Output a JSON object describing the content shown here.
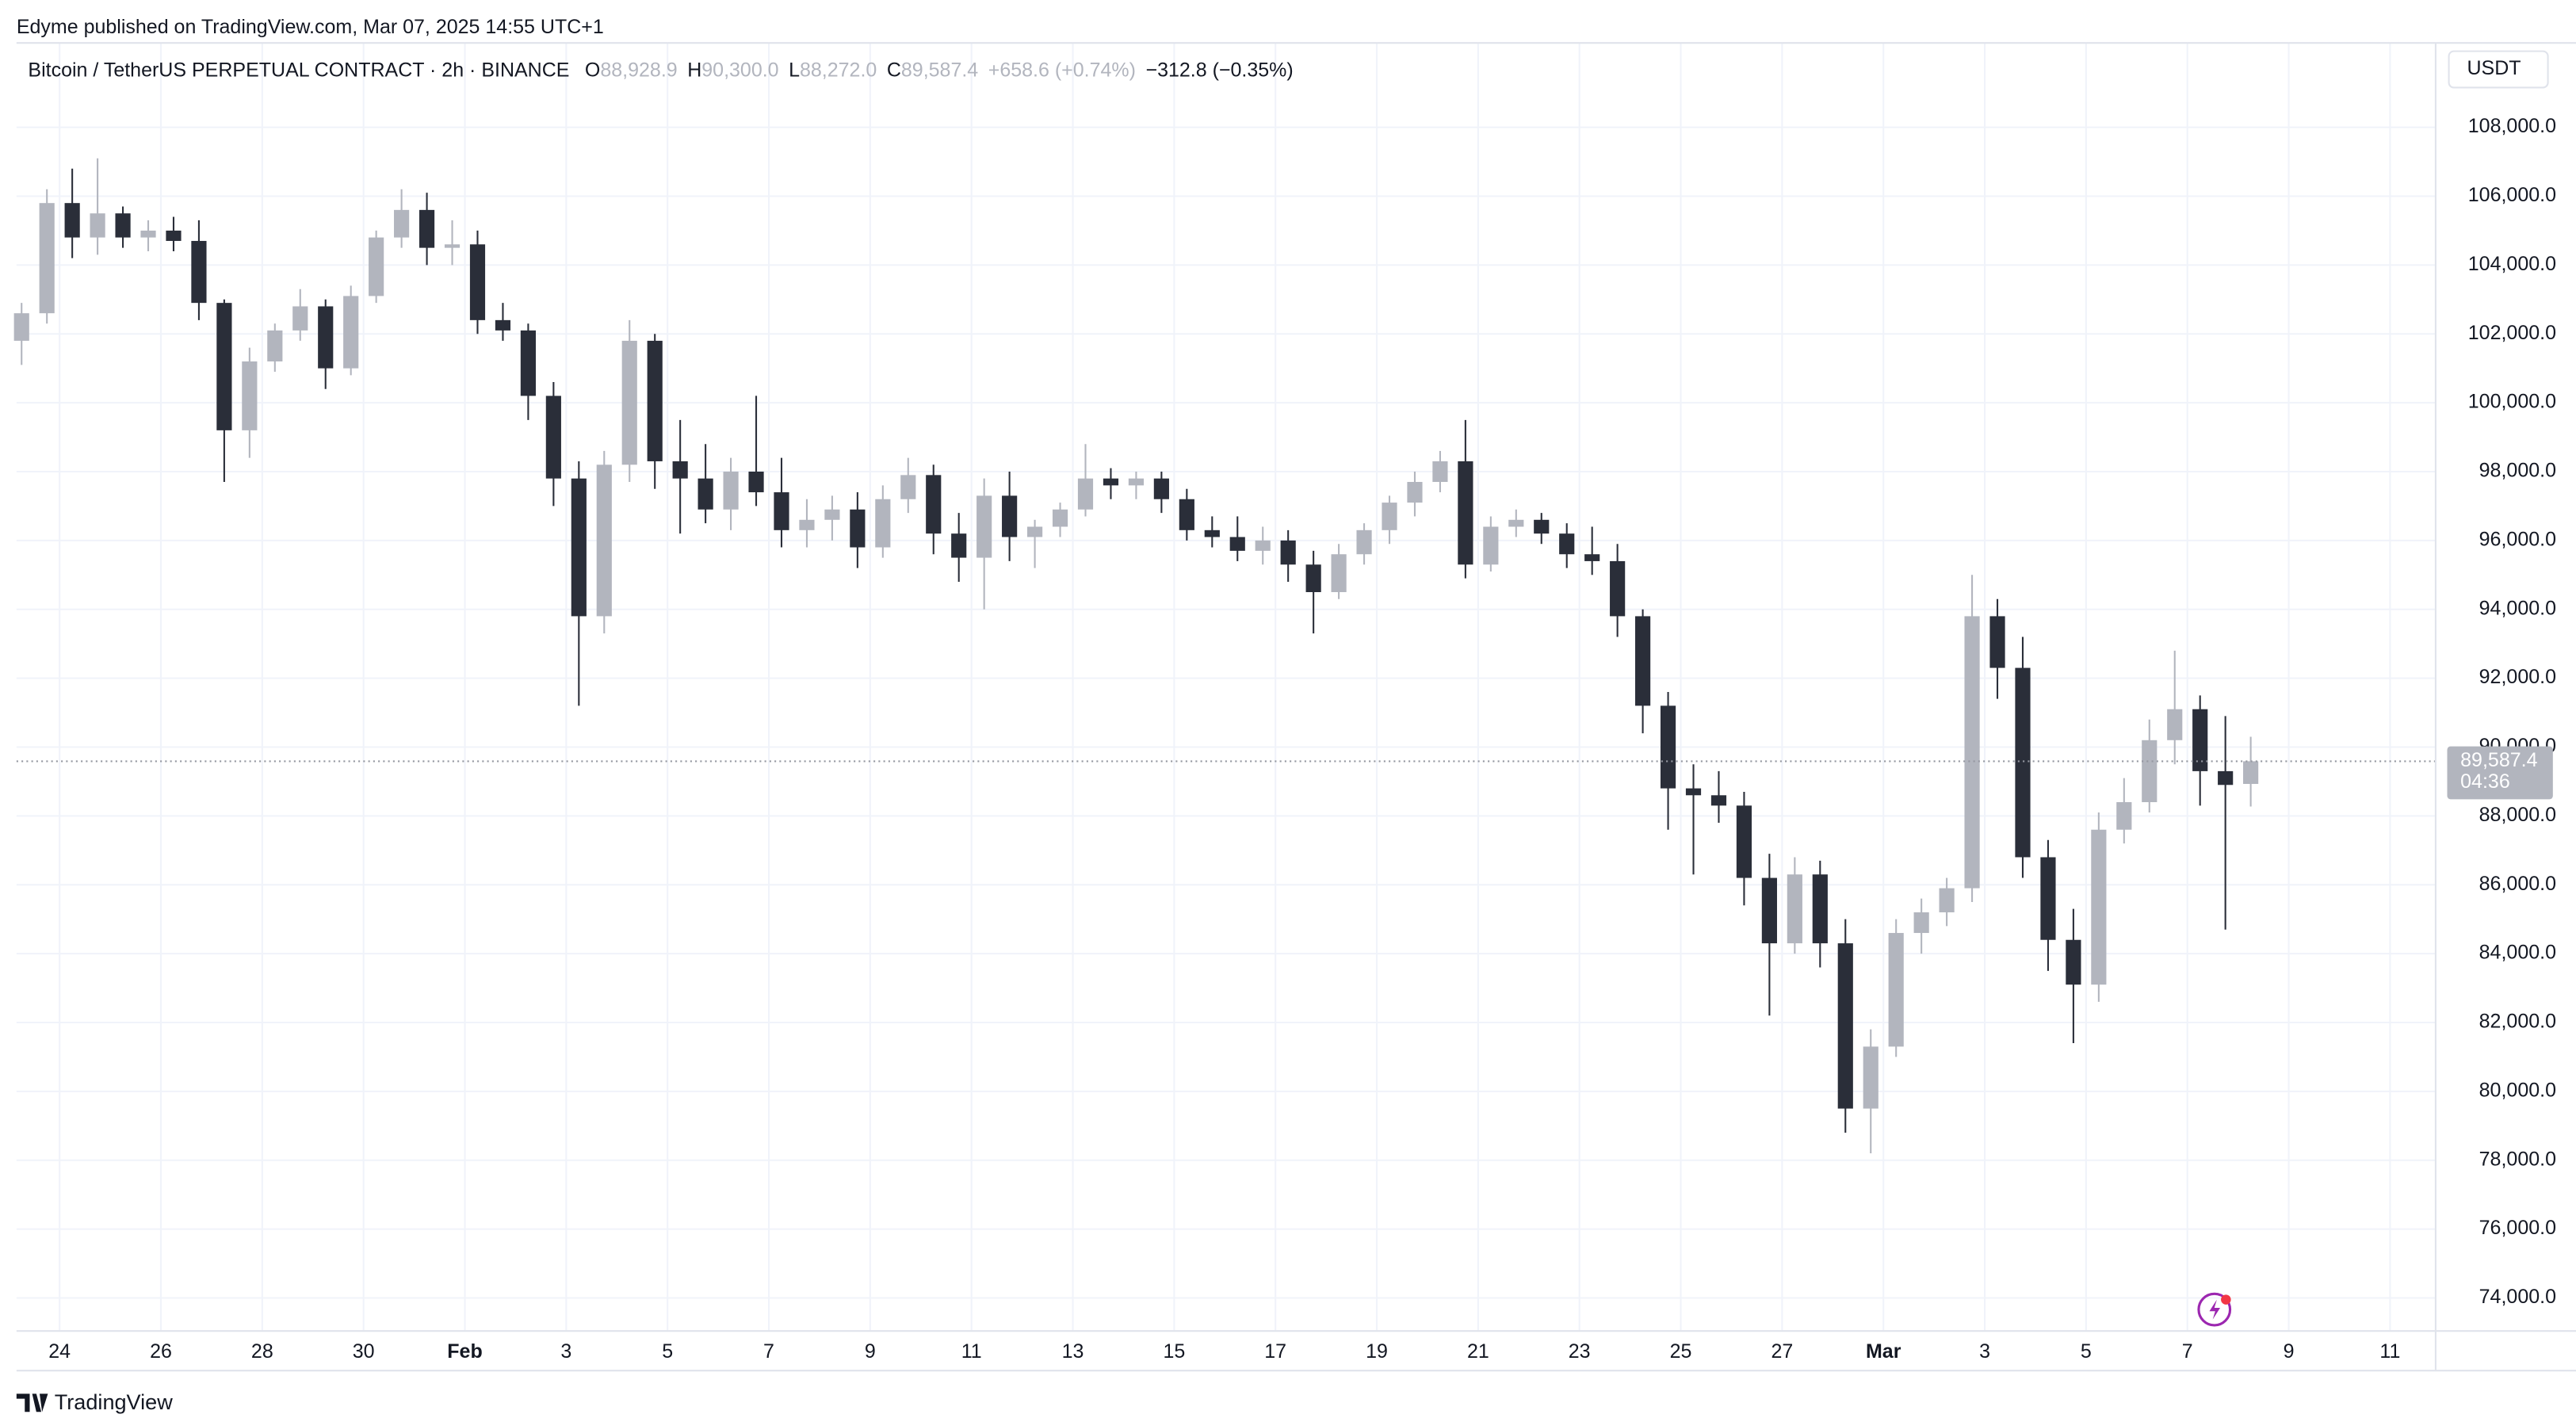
{
  "chart_data": {
    "type": "candlestick",
    "attribution": "Edyme published on TradingView.com, Mar 07, 2025 14:55 UTC+1",
    "title": "Bitcoin / TetherUS PERPETUAL CONTRACT · 2h · BINANCE",
    "ohlc_legend": [
      {
        "label": "O",
        "value": "88,928.9"
      },
      {
        "label": "H",
        "value": "90,300.0"
      },
      {
        "label": "L",
        "value": "88,272.0"
      },
      {
        "label": "C",
        "value": "89,587.4"
      }
    ],
    "change": "+658.6 (+0.74%)",
    "change_2": "−312.8 (−0.35%)",
    "currency": "USDT",
    "last_price": {
      "value": 89587.4,
      "label": "89,587.4"
    },
    "countdown": "04:36",
    "brand": "TradingView",
    "up_color": "#b2b5be",
    "down_color": "#2a2e39",
    "grid": true,
    "xlim": [
      23.15,
      70.9
    ],
    "ylim": [
      73040,
      110450
    ],
    "xticks": [
      24,
      26,
      28,
      30,
      {
        "value": 32,
        "label": "Feb"
      },
      {
        "value": 34,
        "label": "3"
      },
      {
        "value": 36,
        "label": "5"
      },
      {
        "value": 38,
        "label": "7"
      },
      {
        "value": 40,
        "label": "9"
      },
      {
        "value": 42,
        "label": "11"
      },
      {
        "value": 44,
        "label": "13"
      },
      {
        "value": 46,
        "label": "15"
      },
      {
        "value": 48,
        "label": "17"
      },
      {
        "value": 50,
        "label": "19"
      },
      {
        "value": 52,
        "label": "21"
      },
      {
        "value": 54,
        "label": "23"
      },
      {
        "value": 56,
        "label": "25"
      },
      {
        "value": 58,
        "label": "27"
      },
      {
        "value": 60,
        "label": "Mar"
      },
      {
        "value": 62,
        "label": "3"
      },
      {
        "value": 64,
        "label": "5"
      },
      {
        "value": 66,
        "label": "7"
      },
      {
        "value": 68,
        "label": "9"
      },
      {
        "value": 70,
        "label": "11"
      }
    ],
    "yticks": [
      {
        "value": 74000,
        "label": "74,000.0"
      },
      {
        "value": 76000,
        "label": "76,000.0"
      },
      {
        "value": 78000,
        "label": "78,000.0"
      },
      {
        "value": 80000,
        "label": "80,000.0"
      },
      {
        "value": 82000,
        "label": "82,000.0"
      },
      {
        "value": 84000,
        "label": "84,000.0"
      },
      {
        "value": 86000,
        "label": "86,000.0"
      },
      {
        "value": 88000,
        "label": "88,000.0"
      },
      {
        "value": 90000,
        "label": "90,000.0"
      },
      {
        "value": 92000,
        "label": "92,000.0"
      },
      {
        "value": 94000,
        "label": "94,000.0"
      },
      {
        "value": 96000,
        "label": "96,000.0"
      },
      {
        "value": 98000,
        "label": "98,000.0"
      },
      {
        "value": 100000,
        "label": "100,000.0"
      },
      {
        "value": 102000,
        "label": "102,000.0"
      },
      {
        "value": 104000,
        "label": "104,000.0"
      },
      {
        "value": 106000,
        "label": "106,000.0"
      },
      {
        "value": 108000,
        "label": "108,000.0"
      }
    ],
    "x": [
      23.25,
      23.75,
      24.25,
      24.75,
      25.25,
      25.75,
      26.25,
      26.75,
      27.25,
      27.75,
      28.25,
      28.75,
      29.25,
      29.75,
      30.25,
      30.75,
      31.25,
      31.75,
      32.25,
      32.75,
      33.25,
      33.75,
      34.25,
      34.75,
      35.25,
      35.75,
      36.25,
      36.75,
      37.25,
      37.75,
      38.25,
      38.75,
      39.25,
      39.75,
      40.25,
      40.75,
      41.25,
      41.75,
      42.25,
      42.75,
      43.25,
      43.75,
      44.25,
      44.75,
      45.25,
      45.75,
      46.25,
      46.75,
      47.25,
      47.75,
      48.25,
      48.75,
      49.25,
      49.75,
      50.25,
      50.75,
      51.25,
      51.75,
      52.25,
      52.75,
      53.25,
      53.75,
      54.25,
      54.75,
      55.25,
      55.75,
      56.25,
      56.75,
      57.25,
      57.75,
      58.25,
      58.75,
      59.25,
      59.75,
      60.25,
      60.75,
      61.25,
      61.75,
      62.25,
      62.75,
      63.25,
      63.75,
      64.25,
      64.75,
      65.25,
      65.75,
      66.25,
      66.75,
      67.25
    ],
    "open": [
      101800,
      102600,
      105800,
      104800,
      105500,
      104800,
      105000,
      104700,
      102900,
      99200,
      101200,
      102100,
      102800,
      101000,
      103100,
      104800,
      105600,
      104500,
      104600,
      102400,
      102100,
      100200,
      97800,
      93800,
      98200,
      101800,
      98300,
      97800,
      96900,
      98000,
      97400,
      96300,
      96600,
      96900,
      95800,
      97200,
      97900,
      96200,
      95500,
      97300,
      96100,
      96400,
      96900,
      97800,
      97600,
      97800,
      97200,
      96300,
      96100,
      95700,
      96000,
      95300,
      94500,
      95600,
      96300,
      97100,
      97700,
      98300,
      95300,
      96400,
      96600,
      96200,
      95600,
      95400,
      93800,
      91200,
      88800,
      88600,
      88300,
      86200,
      84300,
      86300,
      84300,
      79500,
      81300,
      84600,
      85200,
      85900,
      93800,
      92300,
      86800,
      84400,
      83100,
      87600,
      88400,
      90200,
      91100,
      89300,
      88928.9
    ],
    "high": [
      102900,
      106200,
      106800,
      107100,
      105700,
      105300,
      105400,
      105300,
      103000,
      101600,
      102300,
      103300,
      103000,
      103400,
      105000,
      106200,
      106100,
      105300,
      105000,
      102900,
      102300,
      100600,
      98300,
      98600,
      102400,
      102000,
      99500,
      98800,
      98400,
      100200,
      98400,
      97200,
      97300,
      97400,
      97600,
      98400,
      98200,
      96800,
      97800,
      98000,
      96600,
      97100,
      98800,
      98100,
      98000,
      98000,
      97500,
      96700,
      96700,
      96400,
      96300,
      95700,
      95900,
      96500,
      97300,
      98000,
      98600,
      99500,
      96700,
      96900,
      96800,
      96500,
      96400,
      95900,
      94000,
      91600,
      89500,
      89300,
      88700,
      86900,
      86800,
      86700,
      85000,
      81800,
      85000,
      85600,
      86200,
      95000,
      94300,
      93200,
      87300,
      85300,
      88100,
      89100,
      90800,
      92800,
      91500,
      90900,
      90300
    ],
    "low": [
      101100,
      102300,
      104200,
      104300,
      104500,
      104400,
      104400,
      102400,
      97700,
      98400,
      100900,
      101800,
      100400,
      100800,
      102900,
      104500,
      104000,
      104000,
      102000,
      101800,
      99500,
      97000,
      91200,
      93300,
      97700,
      97500,
      96200,
      96500,
      96300,
      97000,
      95800,
      95800,
      96000,
      95200,
      95500,
      96800,
      95600,
      94800,
      94000,
      95400,
      95200,
      96100,
      96700,
      97200,
      97200,
      96800,
      96000,
      95800,
      95400,
      95300,
      94800,
      93300,
      94300,
      95300,
      95900,
      96700,
      97400,
      94900,
      95100,
      96100,
      95900,
      95200,
      95000,
      93200,
      90400,
      87600,
      86300,
      87800,
      85400,
      82200,
      84000,
      83600,
      78800,
      78200,
      81000,
      84000,
      84800,
      85500,
      91400,
      86200,
      83500,
      81400,
      82600,
      87200,
      88100,
      89500,
      88300,
      84700,
      88272
    ],
    "close": [
      102600,
      105800,
      104800,
      105500,
      104800,
      105000,
      104700,
      102900,
      99200,
      101200,
      102100,
      102800,
      101000,
      103100,
      104800,
      105600,
      104500,
      104600,
      102400,
      102100,
      100200,
      97800,
      93800,
      98200,
      101800,
      98300,
      97800,
      96900,
      98000,
      97400,
      96300,
      96600,
      96900,
      95800,
      97200,
      97900,
      96200,
      95500,
      97300,
      96100,
      96400,
      96900,
      97800,
      97600,
      97800,
      97200,
      96300,
      96100,
      95700,
      96000,
      95300,
      94500,
      95600,
      96300,
      97100,
      97700,
      98300,
      95300,
      96400,
      96600,
      96200,
      95600,
      95400,
      93800,
      91200,
      88800,
      88600,
      88300,
      86200,
      84300,
      86300,
      84300,
      79500,
      81300,
      84600,
      85200,
      85900,
      93800,
      92300,
      86800,
      84400,
      83100,
      87600,
      88400,
      90200,
      91100,
      89300,
      88900,
      89587.4
    ]
  }
}
